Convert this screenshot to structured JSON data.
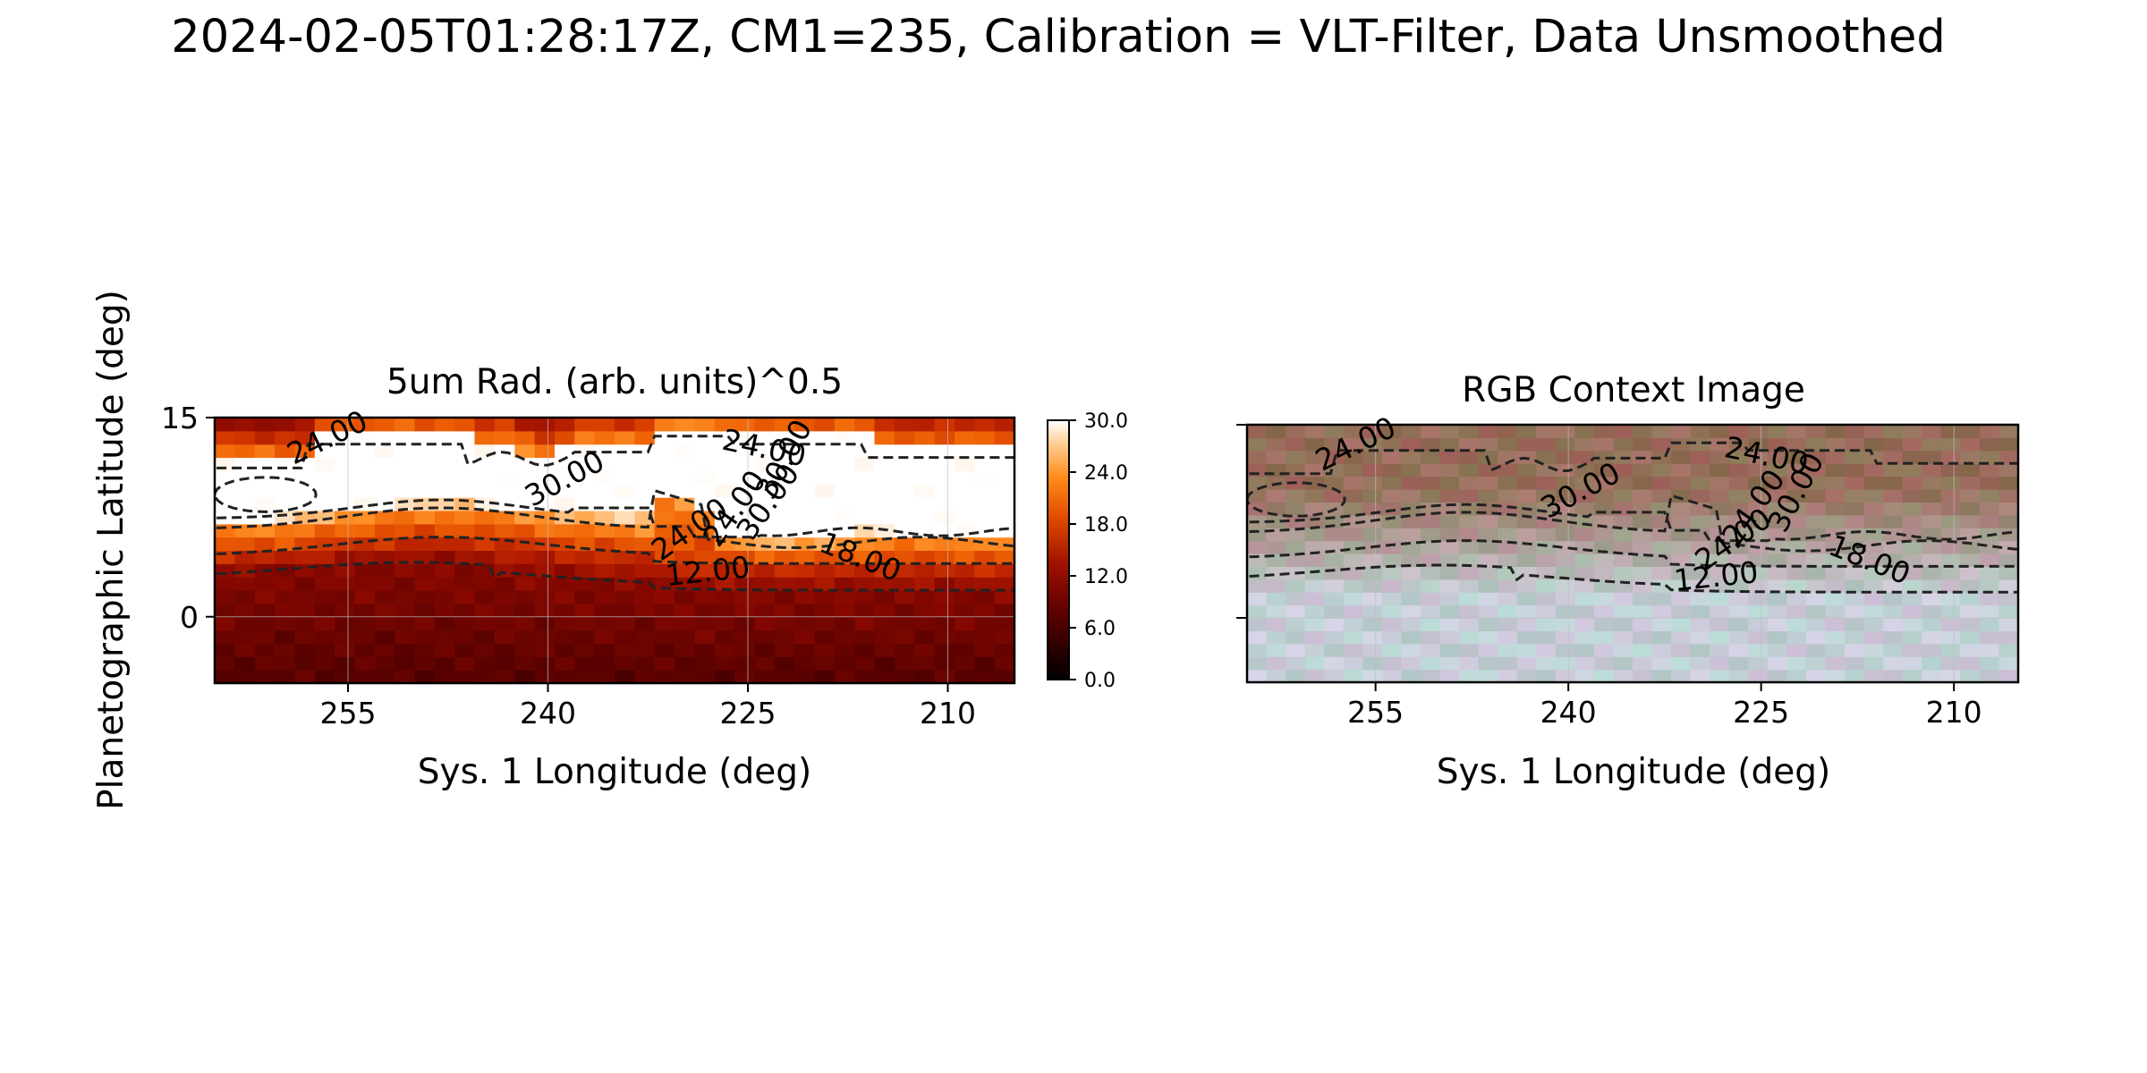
{
  "figure": {
    "suptitle": "2024-02-05T01:28:17Z, CM1=235, Calibration = VLT-Filter, Data Unsmoothed"
  },
  "chart_data": [
    {
      "type": "heatmap",
      "title": "5um Rad. (arb. units)^0.5",
      "xlabel": "Sys. 1 Longitude (deg)",
      "ylabel": "Planetographic Latitude (deg)",
      "xlim": [
        265,
        205
      ],
      "ylim": [
        -5,
        15
      ],
      "x_ticks": [
        255,
        240,
        225,
        210
      ],
      "x_tick_labels": [
        "255",
        "240",
        "225",
        "210"
      ],
      "y_ticks": [
        15,
        0
      ],
      "y_tick_labels": [
        "15",
        "0"
      ],
      "grid": true,
      "colormap": "gist_heat",
      "colorbar": {
        "range": [
          0,
          30
        ],
        "ticks": [
          0,
          6,
          12,
          18,
          24,
          30
        ],
        "tick_labels": [
          "0.0",
          "6.0",
          "12.0",
          "18.0",
          "24.0",
          "30.0"
        ]
      },
      "contour_levels": [
        12,
        18,
        24,
        30
      ],
      "contour_labels": [
        {
          "text": "24.00",
          "lon": 256.5,
          "lat": 13.4,
          "rot": -26
        },
        {
          "text": "30.00",
          "lon": 238.7,
          "lat": 10.3,
          "rot": -28
        },
        {
          "text": "24.00",
          "lon": 223.8,
          "lat": 12.6,
          "rot": 12
        },
        {
          "text": "30.00",
          "lon": 222.2,
          "lat": 11.8,
          "rot": -62
        },
        {
          "text": "24.00",
          "lon": 225.9,
          "lat": 8.1,
          "rot": -55
        },
        {
          "text": "30.00",
          "lon": 223.4,
          "lat": 8.6,
          "rot": -55
        },
        {
          "text": "24.00",
          "lon": 229.3,
          "lat": 6.5,
          "rot": -35
        },
        {
          "text": "18.00",
          "lon": 216.6,
          "lat": 4.4,
          "rot": 22
        },
        {
          "text": "12.00",
          "lon": 228.0,
          "lat": 3.3,
          "rot": -6
        }
      ]
    },
    {
      "type": "heatmap",
      "title": "RGB Context Image",
      "xlabel": "Sys. 1 Longitude (deg)",
      "xlim": [
        265,
        205
      ],
      "ylim": [
        -5,
        15
      ],
      "x_ticks": [
        255,
        240,
        225,
        210
      ],
      "x_tick_labels": [
        "255",
        "240",
        "225",
        "210"
      ],
      "grid": true,
      "contour_levels": [
        12,
        18,
        24,
        30
      ],
      "contour_labels": [
        {
          "text": "24.00",
          "lon": 256.5,
          "lat": 13.4,
          "rot": -26
        },
        {
          "text": "30.00",
          "lon": 239.0,
          "lat": 9.8,
          "rot": -28
        },
        {
          "text": "24.00",
          "lon": 224.6,
          "lat": 12.5,
          "rot": 12
        },
        {
          "text": "30.00",
          "lon": 222.2,
          "lat": 9.7,
          "rot": -62
        },
        {
          "text": "24.00",
          "lon": 225.5,
          "lat": 8.5,
          "rot": -55
        },
        {
          "text": "24.00",
          "lon": 227.1,
          "lat": 6.0,
          "rot": -35
        },
        {
          "text": "18.00",
          "lon": 216.6,
          "lat": 4.4,
          "rot": 22
        },
        {
          "text": "12.00",
          "lon": 228.5,
          "lat": 3.1,
          "rot": -6
        }
      ]
    }
  ]
}
